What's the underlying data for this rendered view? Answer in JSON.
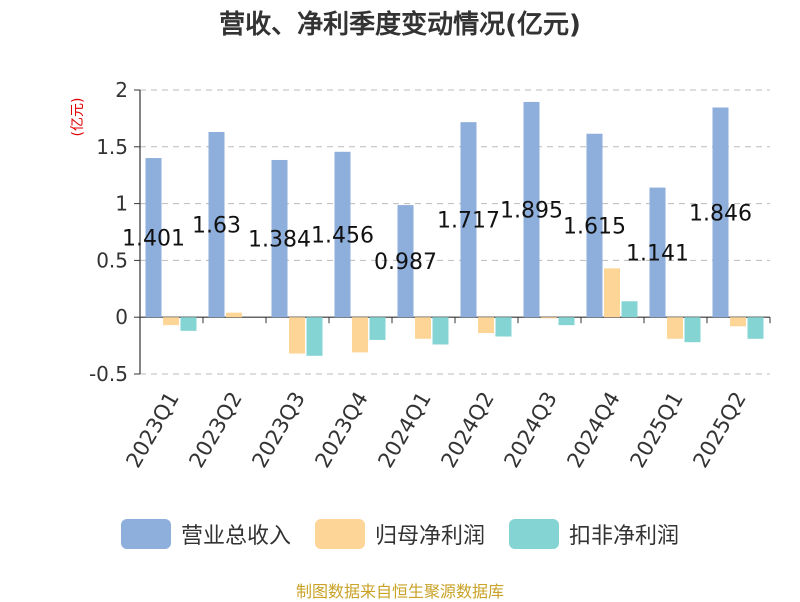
{
  "title": "营收、净利季度变动情况(亿元)",
  "source": "制图数据来自恒生聚源数据库",
  "chart_data": {
    "type": "bar",
    "title": "营收、净利季度变动情况(亿元)",
    "ylabel": "(亿元)",
    "xlabel": "",
    "ylim": [
      -0.5,
      2
    ],
    "yticks": [
      "-0.5",
      "0",
      "0.5",
      "1",
      "1.5",
      "2"
    ],
    "grid": true,
    "legend_position": "bottom",
    "categories": [
      "2023Q1",
      "2023Q2",
      "2023Q3",
      "2023Q4",
      "2024Q1",
      "2024Q2",
      "2024Q3",
      "2024Q4",
      "2025Q1",
      "2025Q2"
    ],
    "series": [
      {
        "name": "营业总收入",
        "color": "#8eaedc",
        "values": [
          1.401,
          1.63,
          1.384,
          1.456,
          0.987,
          1.717,
          1.895,
          1.615,
          1.141,
          1.846
        ],
        "labels": [
          "1.401",
          "1.63",
          "1.384",
          "1.456",
          "0.987",
          "1.717",
          "1.895",
          "1.615",
          "1.141",
          "1.846"
        ]
      },
      {
        "name": "归母净利润",
        "color": "#fdd597",
        "values": [
          -0.07,
          0.04,
          -0.32,
          -0.31,
          -0.19,
          -0.14,
          -0.01,
          0.43,
          -0.19,
          -0.08
        ]
      },
      {
        "name": "扣非净利润",
        "color": "#84d4d4",
        "values": [
          -0.12,
          0.0,
          -0.34,
          -0.2,
          -0.24,
          -0.17,
          -0.07,
          0.14,
          -0.22,
          -0.19
        ]
      }
    ]
  }
}
